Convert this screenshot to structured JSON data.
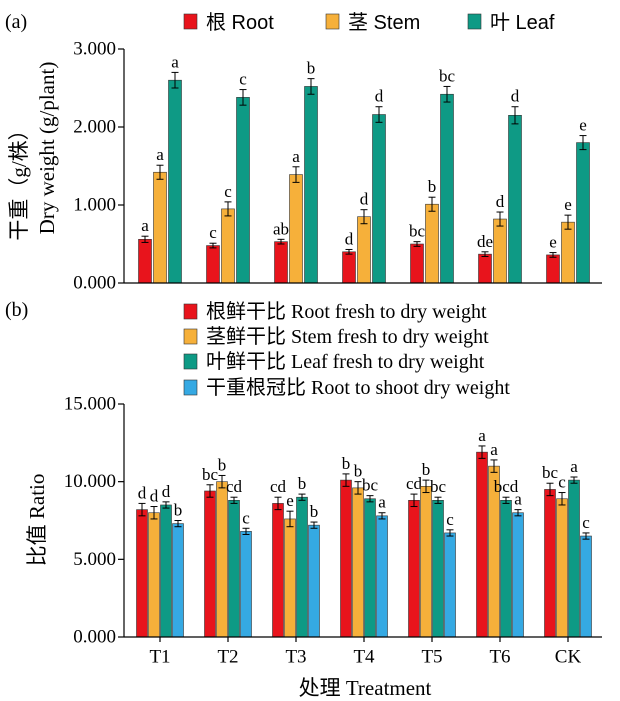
{
  "chart_data": [
    {
      "panel": "(a)",
      "type": "bar",
      "grid": false,
      "legend_position": "top",
      "categories": [
        "T1",
        "T2",
        "T3",
        "T4",
        "T5",
        "T6",
        "CK"
      ],
      "ylabel": [
        "干重（g/株）",
        "Dry weight (g/plant)"
      ],
      "ylim": [
        0,
        3
      ],
      "yticks": [
        "0.000",
        "1.000",
        "2.000",
        "3.000"
      ],
      "series": [
        {
          "name": "根 Root",
          "color": "#e8141c",
          "values": [
            0.56,
            0.48,
            0.53,
            0.4,
            0.5,
            0.37,
            0.36
          ],
          "errors": [
            0.04,
            0.03,
            0.03,
            0.03,
            0.03,
            0.03,
            0.03
          ],
          "labels": [
            "a",
            "c",
            "ab",
            "d",
            "bc",
            "de",
            "e"
          ]
        },
        {
          "name": "茎 Stem",
          "color": "#f6b03a",
          "values": [
            1.42,
            0.95,
            1.39,
            0.85,
            1.01,
            0.82,
            0.78
          ],
          "errors": [
            0.09,
            0.09,
            0.1,
            0.09,
            0.09,
            0.09,
            0.09
          ],
          "labels": [
            "a",
            "c",
            "a",
            "d",
            "b",
            "d",
            "e"
          ]
        },
        {
          "name": "叶 Leaf",
          "color": "#0e9a85",
          "values": [
            2.6,
            2.38,
            2.52,
            2.16,
            2.42,
            2.15,
            1.8
          ],
          "errors": [
            0.1,
            0.1,
            0.1,
            0.1,
            0.1,
            0.11,
            0.09
          ],
          "labels": [
            "a",
            "c",
            "b",
            "d",
            "bc",
            "d",
            "e"
          ]
        }
      ]
    },
    {
      "panel": "(b)",
      "type": "bar",
      "grid": false,
      "legend_position": "top",
      "categories": [
        "T1",
        "T2",
        "T3",
        "T4",
        "T5",
        "T6",
        "CK"
      ],
      "xlabel": "处理 Treatment",
      "ylabel": "比值 Ratio",
      "ylim": [
        0,
        15
      ],
      "yticks": [
        "0.000",
        "5.000",
        "10.000",
        "15.000"
      ],
      "series": [
        {
          "name": "根鲜干比 Root fresh to dry weight",
          "color": "#e8141c",
          "values": [
            8.2,
            9.4,
            8.6,
            10.1,
            8.8,
            11.9,
            9.5
          ],
          "errors": [
            0.4,
            0.4,
            0.4,
            0.4,
            0.4,
            0.4,
            0.4
          ],
          "labels": [
            "d",
            "bc",
            "cd",
            "b",
            "cd",
            "a",
            "bc"
          ]
        },
        {
          "name": "茎鲜干比 Stem fresh to dry weight",
          "color": "#f6b03a",
          "values": [
            8.0,
            10.0,
            7.6,
            9.6,
            9.7,
            11.0,
            8.9
          ],
          "errors": [
            0.4,
            0.4,
            0.5,
            0.4,
            0.4,
            0.4,
            0.4
          ],
          "labels": [
            "d",
            "b",
            "e",
            "b",
            "b",
            "a",
            "c"
          ]
        },
        {
          "name": "叶鲜干比 Leaf fresh to dry weight",
          "color": "#0e9a85",
          "values": [
            8.5,
            8.8,
            9.0,
            8.9,
            8.8,
            8.8,
            10.1
          ],
          "errors": [
            0.2,
            0.2,
            0.2,
            0.2,
            0.2,
            0.2,
            0.2
          ],
          "labels": [
            "d",
            "cd",
            "b",
            "bc",
            "bc",
            "bcd",
            "a"
          ]
        },
        {
          "name": "干重根冠比 Root to shoot dry weight",
          "color": "#35a9e3",
          "values": [
            7.3,
            6.8,
            7.2,
            7.8,
            6.7,
            8.0,
            6.5
          ],
          "errors": [
            0.2,
            0.2,
            0.2,
            0.2,
            0.2,
            0.2,
            0.2
          ],
          "labels": [
            "b",
            "c",
            "b",
            "a",
            "c",
            "a",
            "c"
          ]
        }
      ]
    }
  ]
}
